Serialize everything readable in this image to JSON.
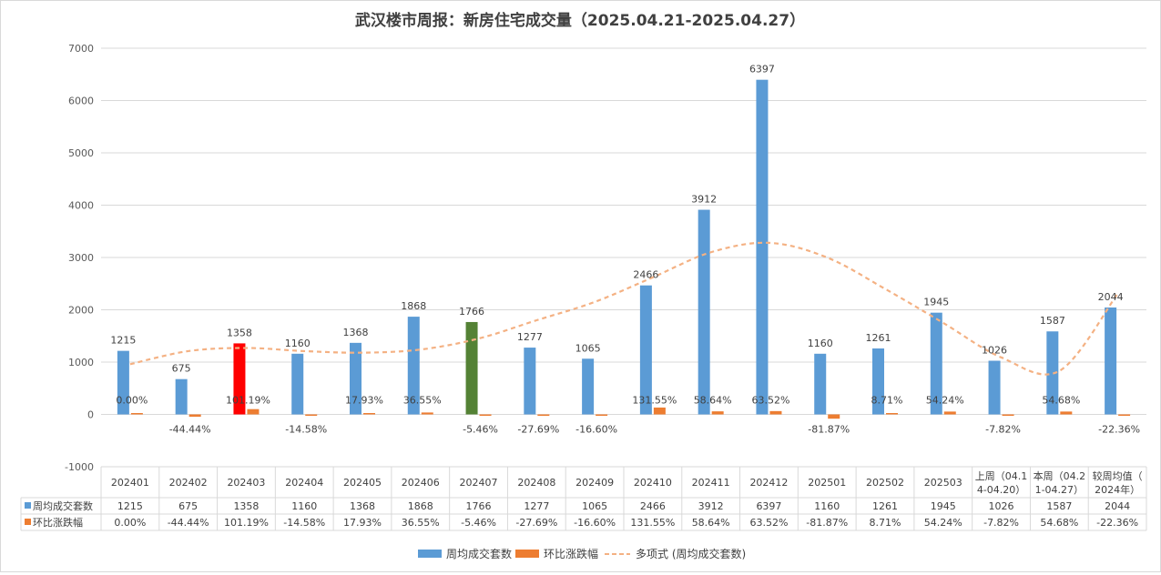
{
  "chart_data": {
    "type": "bar",
    "title": "武汉楼市周报：新房住宅成交量（2025.04.21-2025.04.27）",
    "categories": [
      [
        "202401"
      ],
      [
        "202402"
      ],
      [
        "202403"
      ],
      [
        "202404"
      ],
      [
        "202405"
      ],
      [
        "202406"
      ],
      [
        "202407"
      ],
      [
        "202408"
      ],
      [
        "202409"
      ],
      [
        "202410"
      ],
      [
        "202411"
      ],
      [
        "202412"
      ],
      [
        "202501"
      ],
      [
        "202502"
      ],
      [
        "202503"
      ],
      [
        "上周（04.1",
        "4-04.20）"
      ],
      [
        "本周（04.2",
        "1-04.27）"
      ],
      [
        "较周均值（",
        "2024年）"
      ]
    ],
    "ylim": [
      -1000,
      7000
    ],
    "yticks": [
      -1000,
      0,
      1000,
      2000,
      3000,
      4000,
      5000,
      6000,
      7000
    ],
    "grid": true,
    "legend_position": "bottom",
    "series": [
      {
        "name": "周均成交套数",
        "color": "#5b9bd5",
        "values": [
          1215,
          675,
          1358,
          1160,
          1368,
          1868,
          1766,
          1277,
          1065,
          2466,
          3912,
          6397,
          1160,
          1261,
          1945,
          1026,
          1587,
          2044
        ],
        "labels": [
          "1215",
          "675",
          "1358",
          "1160",
          "1368",
          "1868",
          "1766",
          "1277",
          "1065",
          "2466",
          "3912",
          "6397",
          "1160",
          "1261",
          "1945",
          "1026",
          "1587",
          "2044"
        ],
        "highlight": {
          "2": "#ff0000",
          "6": "#548235"
        }
      },
      {
        "name": "环比涨跌幅",
        "color": "#ed7d31",
        "values": [
          0.0,
          -44.44,
          101.19,
          -14.58,
          17.93,
          36.55,
          -5.46,
          -27.69,
          -16.6,
          131.55,
          58.64,
          63.52,
          -81.87,
          8.71,
          54.24,
          -7.82,
          54.68,
          -22.36
        ],
        "labels": [
          "0.00%",
          "-44.44%",
          "101.19%",
          "-14.58%",
          "17.93%",
          "36.55%",
          "-5.46%",
          "-27.69%",
          "-16.60%",
          "131.55%",
          "58.64%",
          "63.52%",
          "-81.87%",
          "8.71%",
          "54.24%",
          "-7.82%",
          "54.68%",
          "-22.36%"
        ]
      }
    ],
    "trendline": {
      "name": "多项式 (周均成交套数)",
      "color": "#f4b183",
      "y": [
        960,
        1210,
        1270,
        1210,
        1180,
        1240,
        1450,
        1800,
        2150,
        2620,
        3100,
        3280,
        3000,
        2400,
        1750,
        1090,
        830,
        2300
      ]
    }
  }
}
